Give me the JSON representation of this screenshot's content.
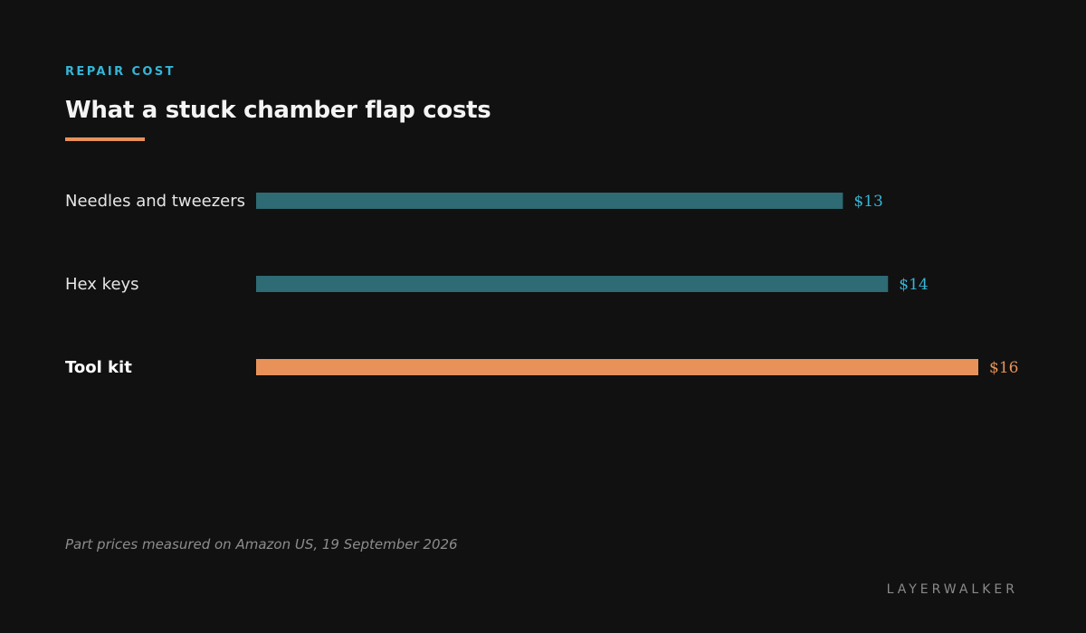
{
  "header": {
    "kicker": "REPAIR COST",
    "title": "What a stuck chamber flap costs"
  },
  "colors": {
    "background": "#111111",
    "accent": "#e8925a",
    "bar": "#2e6b74",
    "value_label": "#35b6d6",
    "kicker": "#35b6d6"
  },
  "chart_data": {
    "type": "bar",
    "orientation": "horizontal",
    "categories": [
      "Needles and tweezers",
      "Hex keys",
      "Tool kit"
    ],
    "values": [
      13,
      14,
      16
    ],
    "value_labels": [
      "$13",
      "$14",
      "$16"
    ],
    "highlight": "Tool kit",
    "title": "What a stuck chamber flap costs",
    "xlabel": "",
    "ylabel": "",
    "xlim": [
      0,
      16
    ],
    "grid": false,
    "legend": "none"
  },
  "footer": {
    "source": "Part prices measured on Amazon US, 19 September 2026",
    "brand": "LAYERWALKER"
  }
}
